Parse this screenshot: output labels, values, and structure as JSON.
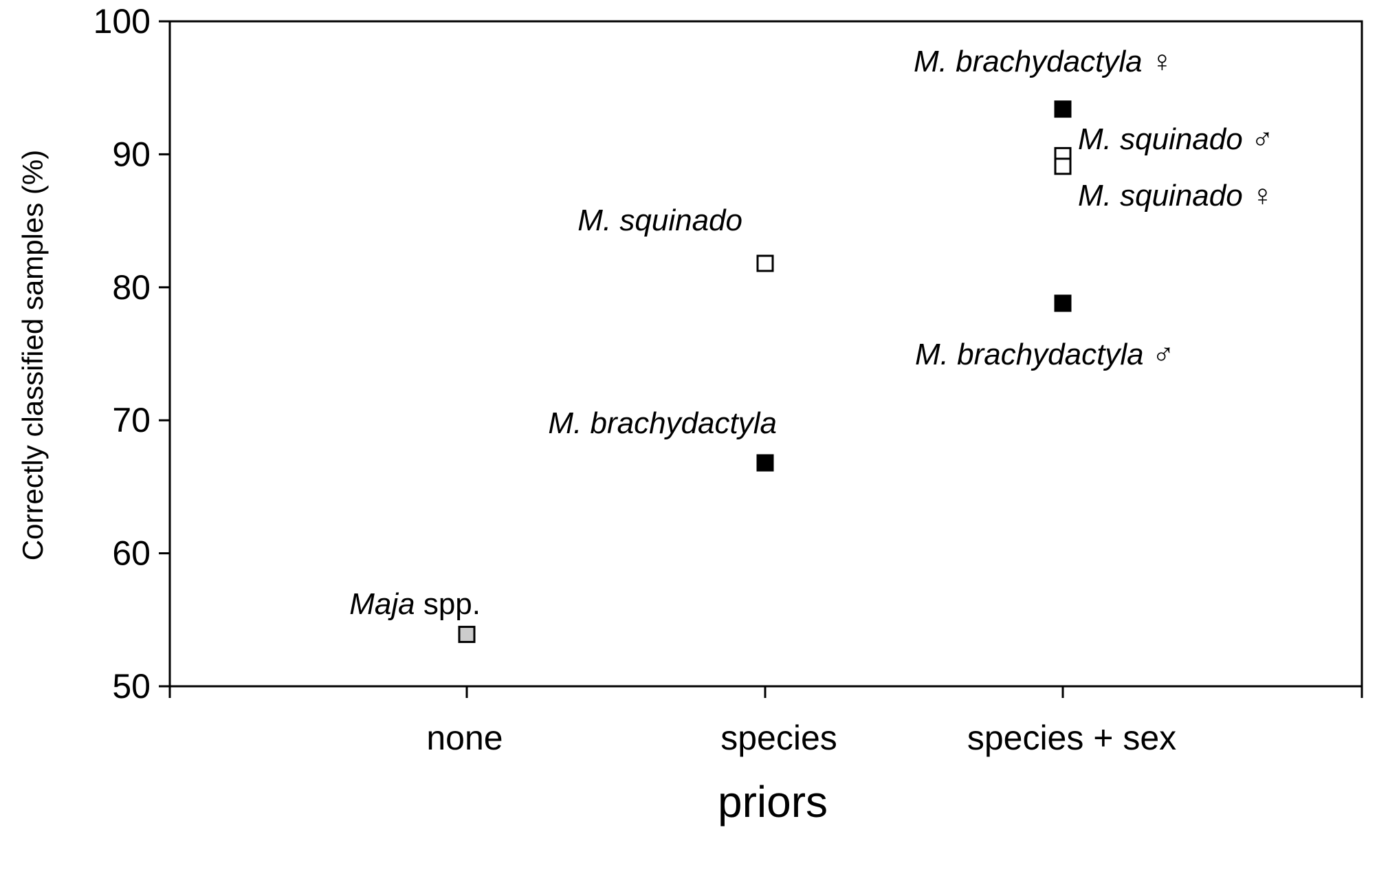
{
  "chart_data": {
    "type": "scatter",
    "title": "",
    "xlabel": "priors",
    "ylabel": "Correctly classified samples (%)",
    "categories": [
      "none",
      "species",
      "species + sex"
    ],
    "ylim": [
      50,
      100
    ],
    "yticks": [
      50,
      60,
      70,
      80,
      90,
      100
    ],
    "grid": false,
    "legend": "none",
    "points": [
      {
        "id": "maja-spp",
        "x": "none",
        "y": 53.9,
        "fill": "#cccccc",
        "label_italic": "Maja",
        "label_plain": " spp."
      },
      {
        "id": "m-squinado",
        "x": "species",
        "y": 81.8,
        "fill": "#ffffff",
        "label_italic": "M. squinado",
        "label_plain": ""
      },
      {
        "id": "m-brachydactyla",
        "x": "species",
        "y": 66.8,
        "fill": "#000000",
        "label_italic": "M. brachydactyla",
        "label_plain": ""
      },
      {
        "id": "m-brachydactyla-female",
        "x": "species + sex",
        "y": 93.4,
        "fill": "#000000",
        "label_italic": "M. brachydactyla",
        "label_plain": " ♀"
      },
      {
        "id": "m-squinado-male",
        "x": "species + sex",
        "y": 89.9,
        "fill": "#ffffff",
        "label_italic": "M. squinado",
        "label_plain": " ♂"
      },
      {
        "id": "m-squinado-female",
        "x": "species + sex",
        "y": 89.1,
        "fill": "#ffffff",
        "label_italic": "M. squinado",
        "label_plain": " ♀"
      },
      {
        "id": "m-brachydactyla-male",
        "x": "species + sex",
        "y": 78.8,
        "fill": "#000000",
        "label_italic": "M. brachydactyla",
        "label_plain": " ♂"
      }
    ]
  }
}
